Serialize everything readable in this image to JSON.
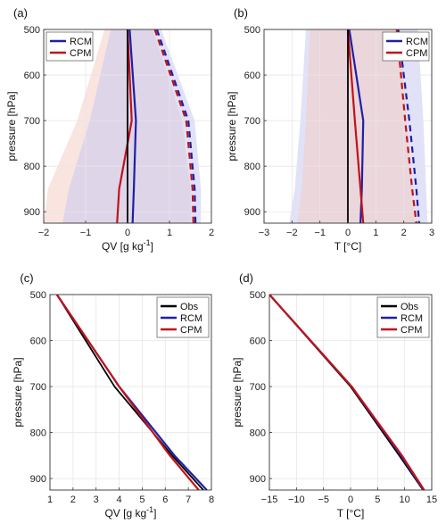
{
  "colors": {
    "rcm": "#1f1fa8",
    "cpm": "#c0141a",
    "obs": "#000000",
    "rcm_fill": "#c9c9f0",
    "cpm_fill": "#f4cdc4",
    "grid": "#e6e6e6"
  },
  "chart_data": [
    {
      "panel": "(a)",
      "type": "line",
      "xlabel": "QV [g kg",
      "xlabel_sup": "-1",
      "xlabel_end": "]",
      "ylabel": "pressure [hPa]",
      "xlim": [
        -2,
        2
      ],
      "ylim": [
        500,
        925
      ],
      "y_reversed": true,
      "grid": true,
      "xticks": [
        -2,
        -1,
        0,
        1,
        2
      ],
      "yticks": [
        500,
        600,
        700,
        800,
        900
      ],
      "legend": {
        "placement": "top-left",
        "entries": [
          "RCM",
          "CPM"
        ]
      },
      "pressure": [
        500,
        700,
        850,
        925
      ],
      "series": [
        {
          "name": "RCM",
          "style": "solid",
          "color_key": "rcm",
          "values": [
            0.05,
            0.2,
            0.15,
            0.12
          ]
        },
        {
          "name": "CPM",
          "style": "solid",
          "color_key": "cpm",
          "values": [
            0.0,
            0.1,
            -0.2,
            -0.25
          ]
        },
        {
          "name": "RCM",
          "style": "dashed",
          "color_key": "rcm",
          "values": [
            0.7,
            1.45,
            1.6,
            1.62
          ]
        },
        {
          "name": "CPM",
          "style": "dashed",
          "color_key": "cpm",
          "values": [
            0.65,
            1.4,
            1.55,
            1.57
          ]
        },
        {
          "name": "Obs",
          "style": "solid",
          "color_key": "obs",
          "values": [
            0,
            0,
            0,
            0
          ]
        }
      ],
      "bands": [
        {
          "color_key": "cpm_fill",
          "lower": [
            -0.55,
            -1.2,
            -1.9,
            -2.0
          ],
          "upper": [
            0.6,
            1.3,
            1.5,
            1.5
          ]
        },
        {
          "color_key": "rcm_fill",
          "lower": [
            -0.4,
            -0.9,
            -1.4,
            -1.55
          ],
          "upper": [
            0.8,
            1.6,
            1.75,
            1.75
          ]
        }
      ]
    },
    {
      "panel": "(b)",
      "type": "line",
      "xlabel": "T [°C]",
      "xlabel_sup": "",
      "xlabel_end": "",
      "ylabel": "pressure [hPa]",
      "xlim": [
        -3,
        3
      ],
      "ylim": [
        500,
        925
      ],
      "y_reversed": true,
      "grid": true,
      "xticks": [
        -3,
        -2,
        -1,
        0,
        1,
        2,
        3
      ],
      "yticks": [
        500,
        600,
        700,
        800,
        900
      ],
      "legend": {
        "placement": "top-right",
        "entries": [
          "RCM",
          "CPM"
        ]
      },
      "pressure": [
        500,
        700,
        850,
        925
      ],
      "series": [
        {
          "name": "RCM",
          "style": "solid",
          "color_key": "rcm",
          "values": [
            0.05,
            0.55,
            0.5,
            0.45
          ]
        },
        {
          "name": "CPM",
          "style": "solid",
          "color_key": "cpm",
          "values": [
            0.0,
            0.25,
            0.45,
            0.55
          ]
        },
        {
          "name": "RCM",
          "style": "dashed",
          "color_key": "rcm",
          "values": [
            1.8,
            2.2,
            2.45,
            2.55
          ]
        },
        {
          "name": "CPM",
          "style": "dashed",
          "color_key": "cpm",
          "values": [
            1.75,
            2.05,
            2.3,
            2.45
          ]
        },
        {
          "name": "Obs",
          "style": "solid",
          "color_key": "obs",
          "values": [
            0,
            0,
            0,
            0
          ]
        }
      ],
      "bands": [
        {
          "color_key": "rcm_fill",
          "lower": [
            -1.5,
            -1.7,
            -1.9,
            -2.1
          ],
          "upper": [
            2.5,
            2.7,
            2.8,
            2.85
          ]
        },
        {
          "color_key": "cpm_fill",
          "lower": [
            -1.35,
            -1.5,
            -1.65,
            -1.8
          ],
          "upper": [
            1.9,
            2.1,
            2.3,
            2.4
          ]
        }
      ]
    },
    {
      "panel": "(c)",
      "type": "line",
      "xlabel": "QV [g kg",
      "xlabel_sup": "-1",
      "xlabel_end": "]",
      "ylabel": "pressure [hPa]",
      "xlim": [
        1,
        8
      ],
      "ylim": [
        500,
        925
      ],
      "y_reversed": true,
      "grid": true,
      "xticks": [
        1,
        2,
        3,
        4,
        5,
        6,
        7,
        8
      ],
      "yticks": [
        500,
        600,
        700,
        800,
        900
      ],
      "legend": {
        "placement": "top-right",
        "entries": [
          "Obs",
          "RCM",
          "CPM"
        ]
      },
      "pressure": [
        500,
        700,
        850,
        925
      ],
      "series": [
        {
          "name": "Obs",
          "style": "solid",
          "color_key": "obs",
          "values": [
            1.3,
            3.8,
            6.3,
            7.65
          ]
        },
        {
          "name": "RCM",
          "style": "solid",
          "color_key": "rcm",
          "values": [
            1.3,
            4.0,
            6.4,
            7.8
          ]
        },
        {
          "name": "CPM",
          "style": "solid",
          "color_key": "cpm",
          "values": [
            1.3,
            4.0,
            6.2,
            7.45
          ]
        }
      ],
      "bands": []
    },
    {
      "panel": "(d)",
      "type": "line",
      "xlabel": "T [°C]",
      "xlabel_sup": "",
      "xlabel_end": "",
      "ylabel": "pressure [hPa]",
      "xlim": [
        -15,
        15
      ],
      "ylim": [
        500,
        925
      ],
      "y_reversed": true,
      "grid": true,
      "xticks": [
        -15,
        -10,
        -5,
        0,
        5,
        10,
        15
      ],
      "yticks": [
        500,
        600,
        700,
        800,
        900
      ],
      "legend": {
        "placement": "top-right",
        "entries": [
          "Obs",
          "RCM",
          "CPM"
        ]
      },
      "pressure": [
        500,
        700,
        850,
        925
      ],
      "series": [
        {
          "name": "Obs",
          "style": "solid",
          "color_key": "obs",
          "values": [
            -15.0,
            0.0,
            9.0,
            13.4
          ]
        },
        {
          "name": "RCM",
          "style": "solid",
          "color_key": "rcm",
          "values": [
            -15.0,
            0.2,
            9.3,
            13.5
          ]
        },
        {
          "name": "CPM",
          "style": "solid",
          "color_key": "cpm",
          "values": [
            -15.0,
            0.2,
            9.5,
            13.6
          ]
        }
      ],
      "bands": []
    }
  ]
}
